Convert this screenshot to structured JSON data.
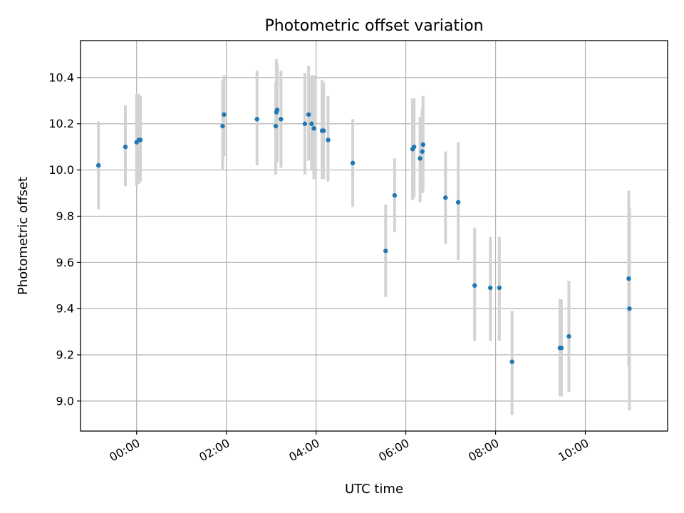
{
  "chart_data": {
    "type": "scatter",
    "title": "Photometric offset variation",
    "xlabel": "UTC time",
    "ylabel": "Photometric offset",
    "xlim": [
      "-1:15",
      "11:50"
    ],
    "ylim": [
      8.87,
      10.56
    ],
    "x_ticks": [
      "00:00",
      "02:00",
      "04:00",
      "06:00",
      "08:00",
      "10:00"
    ],
    "y_ticks": [
      "9.0",
      "9.2",
      "9.4",
      "9.6",
      "9.8",
      "10.0",
      "10.2",
      "10.4"
    ],
    "grid": true,
    "point_color": "#1f77b4",
    "errorbar_color": "#d3d3d3",
    "points": [
      {
        "t": "-0:51",
        "y": 10.02,
        "lo": 9.83,
        "hi": 10.21
      },
      {
        "t": "-0:15",
        "y": 10.1,
        "lo": 9.93,
        "hi": 10.28
      },
      {
        "t": "0:00",
        "y": 10.12,
        "lo": 9.93,
        "hi": 10.33
      },
      {
        "t": "0:03",
        "y": 10.13,
        "lo": 9.94,
        "hi": 10.33
      },
      {
        "t": "0:05",
        "y": 10.13,
        "lo": 9.95,
        "hi": 10.32
      },
      {
        "t": "1:55",
        "y": 10.19,
        "lo": 10.0,
        "hi": 10.39
      },
      {
        "t": "1:57",
        "y": 10.24,
        "lo": 10.06,
        "hi": 10.41
      },
      {
        "t": "2:41",
        "y": 10.22,
        "lo": 10.02,
        "hi": 10.43
      },
      {
        "t": "3:06",
        "y": 10.19,
        "lo": 9.98,
        "hi": 10.38
      },
      {
        "t": "3:07",
        "y": 10.25,
        "lo": 10.03,
        "hi": 10.48
      },
      {
        "t": "3:08",
        "y": 10.26,
        "lo": 10.04,
        "hi": 10.46
      },
      {
        "t": "3:13",
        "y": 10.22,
        "lo": 10.01,
        "hi": 10.43
      },
      {
        "t": "3:45",
        "y": 10.2,
        "lo": 9.98,
        "hi": 10.42
      },
      {
        "t": "3:50",
        "y": 10.24,
        "lo": 10.04,
        "hi": 10.45
      },
      {
        "t": "3:54",
        "y": 10.2,
        "lo": 10.0,
        "hi": 10.41
      },
      {
        "t": "3:57",
        "y": 10.18,
        "lo": 9.96,
        "hi": 10.41
      },
      {
        "t": "4:08",
        "y": 10.17,
        "lo": 9.96,
        "hi": 10.39
      },
      {
        "t": "4:10",
        "y": 10.17,
        "lo": 9.96,
        "hi": 10.38
      },
      {
        "t": "4:16",
        "y": 10.13,
        "lo": 9.95,
        "hi": 10.32
      },
      {
        "t": "4:49",
        "y": 10.03,
        "lo": 9.84,
        "hi": 10.22
      },
      {
        "t": "5:33",
        "y": 9.65,
        "lo": 9.45,
        "hi": 9.85
      },
      {
        "t": "5:45",
        "y": 9.89,
        "lo": 9.73,
        "hi": 10.05
      },
      {
        "t": "6:09",
        "y": 10.09,
        "lo": 9.87,
        "hi": 10.31
      },
      {
        "t": "6:11",
        "y": 10.1,
        "lo": 9.88,
        "hi": 10.31
      },
      {
        "t": "6:19",
        "y": 10.05,
        "lo": 9.86,
        "hi": 10.23
      },
      {
        "t": "6:22",
        "y": 10.08,
        "lo": 9.9,
        "hi": 10.27
      },
      {
        "t": "6:23",
        "y": 10.11,
        "lo": 9.91,
        "hi": 10.32
      },
      {
        "t": "6:53",
        "y": 9.88,
        "lo": 9.68,
        "hi": 10.08
      },
      {
        "t": "7:10",
        "y": 9.86,
        "lo": 9.61,
        "hi": 10.12
      },
      {
        "t": "7:32",
        "y": 9.5,
        "lo": 9.26,
        "hi": 9.75
      },
      {
        "t": "7:53",
        "y": 9.49,
        "lo": 9.26,
        "hi": 9.71
      },
      {
        "t": "8:05",
        "y": 9.49,
        "lo": 9.26,
        "hi": 9.71
      },
      {
        "t": "8:22",
        "y": 9.17,
        "lo": 8.94,
        "hi": 9.39
      },
      {
        "t": "9:26",
        "y": 9.23,
        "lo": 9.02,
        "hi": 9.44
      },
      {
        "t": "9:28",
        "y": 9.23,
        "lo": 9.02,
        "hi": 9.44
      },
      {
        "t": "9:38",
        "y": 9.28,
        "lo": 9.04,
        "hi": 9.52
      },
      {
        "t": "10:58",
        "y": 9.53,
        "lo": 9.15,
        "hi": 9.91
      },
      {
        "t": "10:59",
        "y": 9.4,
        "lo": 8.96,
        "hi": 9.84
      }
    ]
  }
}
